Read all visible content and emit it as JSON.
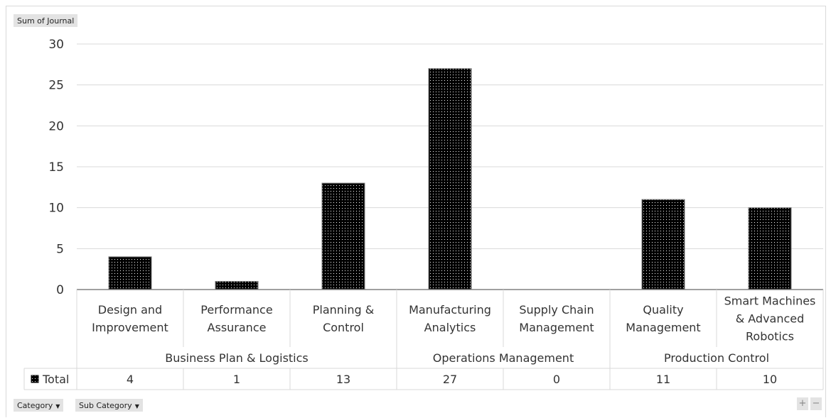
{
  "value_field_label": "Sum of Journal",
  "filter_buttons": [
    {
      "label": "Category",
      "arrow": "▼"
    },
    {
      "label": "Sub Category",
      "arrow": "▼"
    }
  ],
  "zoom_controls": {
    "plus": "+",
    "minus": "−"
  },
  "legend": {
    "label": "Total"
  },
  "colors": {
    "bar": "#000000",
    "grid": "#d9d9d9",
    "text": "#333333"
  },
  "chart_data": {
    "type": "bar",
    "title": "",
    "xlabel": "",
    "ylabel": "",
    "ylim": [
      0,
      30
    ],
    "yticks": [
      0,
      5,
      10,
      15,
      20,
      25,
      30
    ],
    "grid": true,
    "groups": [
      {
        "name": "Business Plan & Logistics",
        "categories": [
          {
            "lines": [
              "Design and",
              "Improvement"
            ],
            "value": 4
          },
          {
            "lines": [
              "Performance",
              "Assurance"
            ],
            "value": 1
          },
          {
            "lines": [
              "Planning &",
              "Control"
            ],
            "value": 13
          }
        ]
      },
      {
        "name": "Operations Management",
        "categories": [
          {
            "lines": [
              "Manufacturing",
              "Analytics"
            ],
            "value": 27
          },
          {
            "lines": [
              "Supply Chain",
              "Management"
            ],
            "value": 0
          }
        ]
      },
      {
        "name": "Production Control",
        "categories": [
          {
            "lines": [
              "Quality",
              "Management"
            ],
            "value": 11
          },
          {
            "lines": [
              "Smart Machines",
              "& Advanced",
              "Robotics"
            ],
            "value": 10
          }
        ]
      }
    ],
    "series": [
      {
        "name": "Total",
        "values": [
          4,
          1,
          13,
          27,
          0,
          11,
          10
        ]
      }
    ]
  }
}
